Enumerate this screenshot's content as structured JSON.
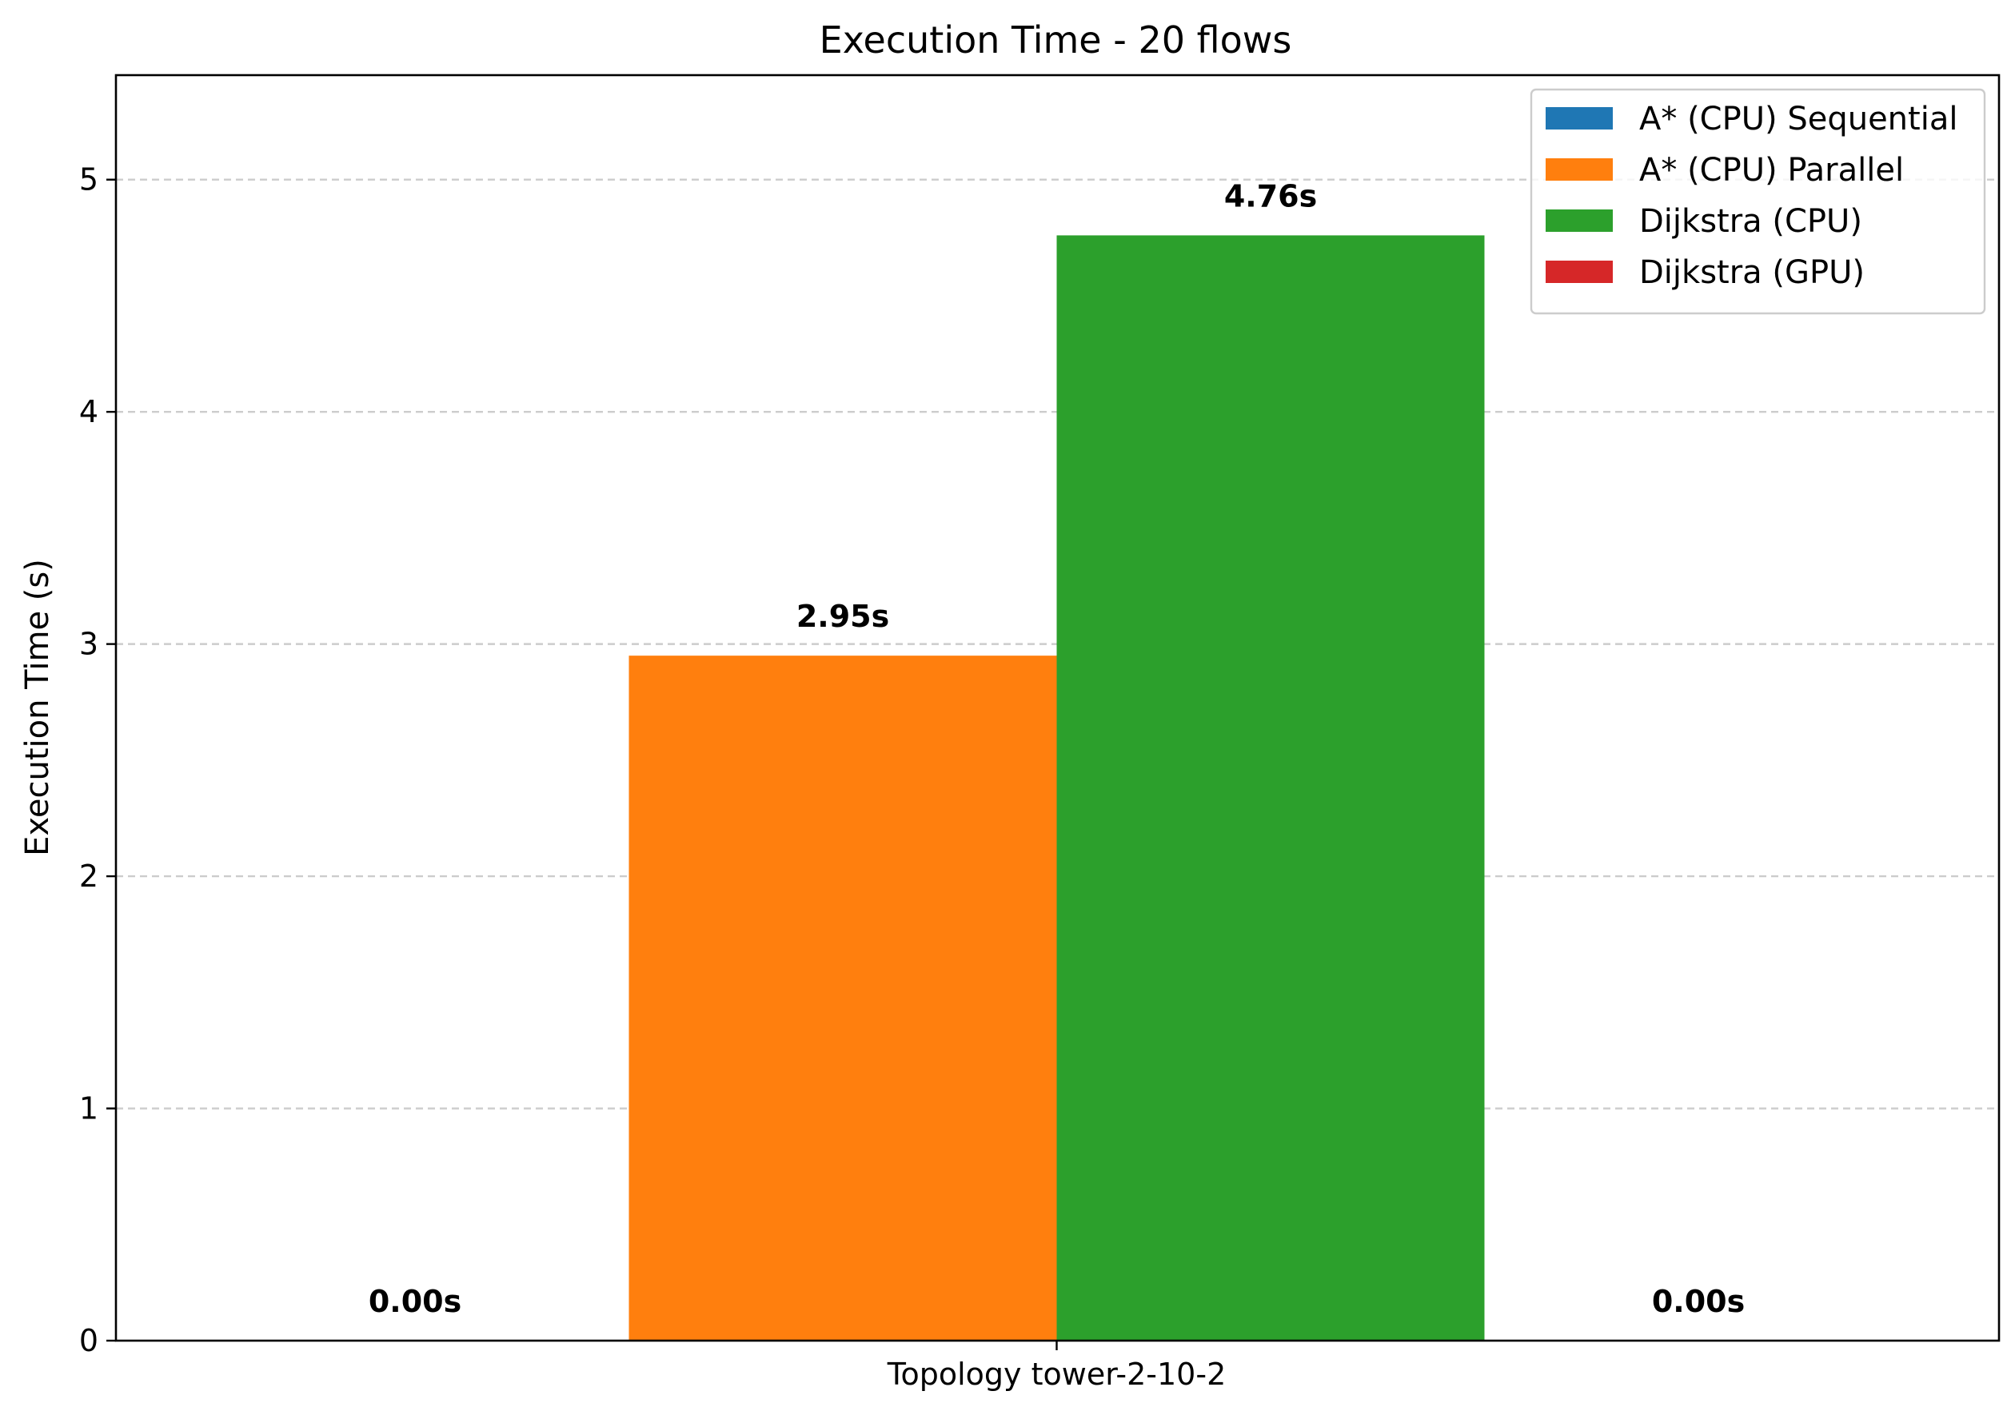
{
  "chart_data": {
    "type": "bar",
    "title": "Execution Time - 20 flows",
    "xlabel": "",
    "ylabel": "Execution Time (s)",
    "categories": [
      "Topology tower-2-10-2"
    ],
    "ylim": [
      0,
      5.45
    ],
    "yticks": [
      0,
      1,
      2,
      3,
      4,
      5
    ],
    "grid": "y-dashed",
    "legend_position": "top-right",
    "series": [
      {
        "name": "A* (CPU) Sequential",
        "color": "#1f77b4",
        "values": [
          0.0
        ],
        "label": "0.00s"
      },
      {
        "name": "A* (CPU) Parallel",
        "color": "#ff7f0e",
        "values": [
          2.95
        ],
        "label": "2.95s"
      },
      {
        "name": "Dijkstra (CPU)",
        "color": "#2ca02c",
        "values": [
          4.76
        ],
        "label": "4.76s"
      },
      {
        "name": "Dijkstra (GPU)",
        "color": "#d62728",
        "values": [
          0.0
        ],
        "label": "0.00s"
      }
    ]
  }
}
